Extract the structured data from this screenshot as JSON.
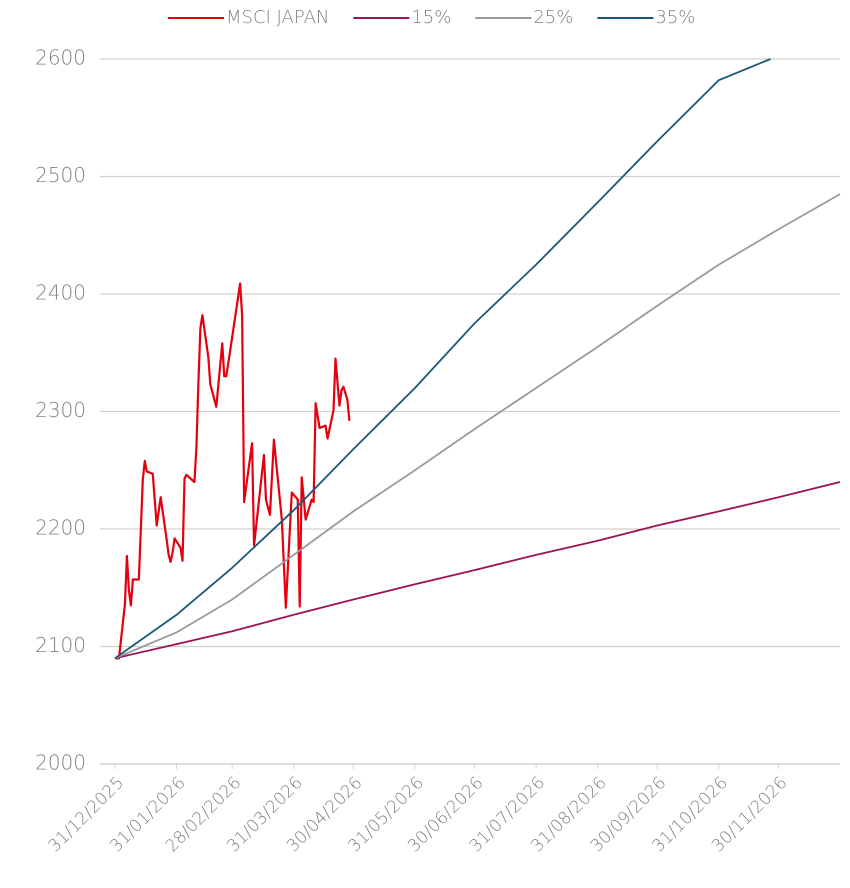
{
  "chart_data": {
    "type": "line",
    "series": [
      {
        "name": "MSCI JAPAN",
        "color": "#e3000f",
        "x": [
          "31/12/2025",
          "02/01/2026",
          "05/01/2026",
          "06/01/2026",
          "07/01/2026",
          "08/01/2026",
          "09/01/2026",
          "12/01/2026",
          "14/01/2026",
          "15/01/2026",
          "16/01/2026",
          "19/01/2026",
          "21/01/2026",
          "23/01/2026",
          "26/01/2026",
          "27/01/2026",
          "28/01/2026",
          "29/01/2026",
          "30/01/2026",
          "02/02/2026",
          "03/02/2026",
          "04/02/2026",
          "05/02/2026",
          "09/02/2026",
          "10/02/2026",
          "11/02/2026",
          "12/02/2026",
          "13/02/2026",
          "16/02/2026",
          "17/02/2026",
          "20/02/2026",
          "23/02/2026",
          "24/02/2026",
          "25/02/2026",
          "27/02/2026",
          "04/03/2026",
          "05/03/2026",
          "06/03/2026",
          "10/03/2026",
          "11/03/2026",
          "16/03/2026",
          "17/03/2026",
          "19/03/2026",
          "21/03/2026",
          "25/03/2026",
          "27/03/2026",
          "30/03/2026",
          "02/04/2026",
          "03/04/2026",
          "04/04/2026",
          "06/04/2026",
          "09/04/2026",
          "10/04/2026",
          "11/04/2026",
          "13/04/2026",
          "16/04/2026",
          "17/04/2026",
          "20/04/2026",
          "21/04/2026",
          "23/04/2026",
          "24/04/2026",
          "25/04/2026",
          "27/04/2026",
          "28/04/2026"
        ],
        "values": [
          2090,
          2090,
          2136,
          2177,
          2148,
          2135,
          2157,
          2157,
          2242,
          2258,
          2249,
          2247,
          2203,
          2227,
          2191,
          2178,
          2172,
          2180,
          2192,
          2184,
          2173,
          2243,
          2246,
          2240,
          2270,
          2325,
          2371,
          2382,
          2346,
          2323,
          2304,
          2358,
          2330,
          2330,
          2352,
          2409,
          2382,
          2223,
          2273,
          2186,
          2263,
          2225,
          2212,
          2276,
          2208,
          2133,
          2231,
          2225,
          2134,
          2244,
          2208,
          2225,
          2223,
          2307,
          2286,
          2288,
          2277,
          2301,
          2345,
          2305,
          2318,
          2321,
          2310,
          2292
        ]
      },
      {
        "name": "15%",
        "color": "#9c1356",
        "x": [
          "31/12/2025",
          "31/01/2026",
          "28/02/2026",
          "31/03/2026",
          "30/04/2026",
          "31/05/2026",
          "30/06/2026",
          "31/07/2026",
          "31/08/2026",
          "30/09/2026",
          "31/10/2026",
          "30/11/2026",
          "31/12/2026"
        ],
        "values": [
          2090,
          2102,
          2113,
          2127,
          2140,
          2153,
          2165,
          2178,
          2190,
          2203,
          2215,
          2227,
          2240
        ]
      },
      {
        "name": "25%",
        "color": "#9a9a9a",
        "x": [
          "31/12/2025",
          "31/01/2026",
          "28/02/2026",
          "31/03/2026",
          "30/04/2026",
          "31/05/2026",
          "30/06/2026",
          "31/07/2026",
          "31/08/2026",
          "30/09/2026",
          "31/10/2026",
          "30/11/2026",
          "31/12/2026"
        ],
        "values": [
          2090,
          2112,
          2140,
          2178,
          2215,
          2250,
          2285,
          2320,
          2355,
          2390,
          2425,
          2455,
          2485
        ]
      },
      {
        "name": "35%",
        "color": "#1b5877",
        "x": [
          "31/12/2025",
          "31/01/2026",
          "28/02/2026",
          "31/03/2026",
          "30/04/2026",
          "31/05/2026",
          "30/06/2026",
          "31/07/2026",
          "31/08/2026",
          "30/09/2026",
          "31/10/2026",
          "26/11/2026"
        ],
        "values": [
          2090,
          2127,
          2167,
          2216,
          2268,
          2320,
          2375,
          2425,
          2478,
          2530,
          2582,
          2600
        ]
      }
    ],
    "xlim": [
      "31/12/2025",
      "31/12/2026"
    ],
    "xticks": [
      "31/12/2025",
      "31/01/2026",
      "28/02/2026",
      "31/03/2026",
      "30/04/2026",
      "31/05/2026",
      "30/06/2026",
      "31/07/2026",
      "31/08/2026",
      "30/09/2026",
      "31/10/2026",
      "30/11/2026"
    ],
    "ylim": [
      2000,
      2600
    ],
    "yticks": [
      2000,
      2100,
      2200,
      2300,
      2400,
      2500,
      2600
    ],
    "grid": true,
    "legend": "top"
  }
}
